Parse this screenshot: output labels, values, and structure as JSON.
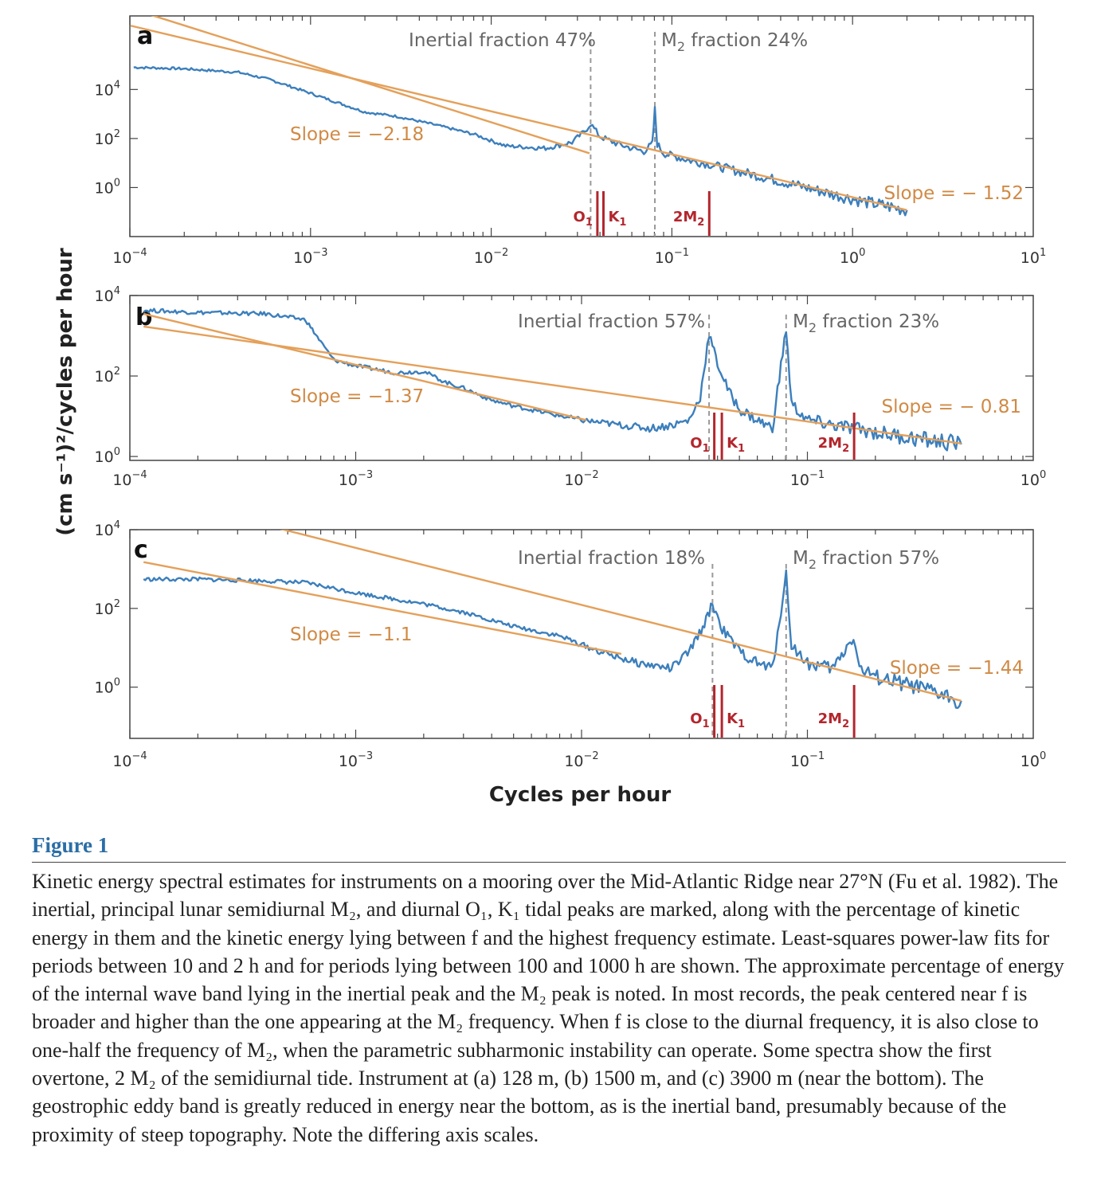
{
  "figure": {
    "xlabel": "Cycles per hour",
    "ylabel": "(cm s⁻¹)²/cycles per hour"
  },
  "colors": {
    "spectrum": "#3c7fbc",
    "fit": "#e4a05a",
    "tide": "#b3262d",
    "dashed": "#999999",
    "title": "#2b6ea6"
  },
  "chart_data": [
    {
      "type": "line",
      "panel": "a",
      "x_scale": "log",
      "y_scale": "log",
      "xlim": [
        0.0001,
        10
      ],
      "ylim": [
        0.01,
        10000000
      ],
      "x_ticks": [
        {
          "base": "10",
          "exp": "−4",
          "v": 0.0001
        },
        {
          "base": "10",
          "exp": "−3",
          "v": 0.001
        },
        {
          "base": "10",
          "exp": "−2",
          "v": 0.01
        },
        {
          "base": "10",
          "exp": "−1",
          "v": 0.1
        },
        {
          "base": "10",
          "exp": "0",
          "v": 1
        },
        {
          "base": "10",
          "exp": "1",
          "v": 10
        }
      ],
      "y_ticks": [
        {
          "base": "10",
          "exp": "0",
          "v": 1
        },
        {
          "base": "10",
          "exp": "2",
          "v": 100
        },
        {
          "base": "10",
          "exp": "4",
          "v": 10000
        }
      ],
      "inertial_label": "Inertial fraction 47%",
      "m2_label_pre": "M",
      "m2_label_sub": "2",
      "m2_label_post": " fraction 24%",
      "inertial_freq": 0.0355,
      "m2_freq": 0.0805,
      "low_fit": {
        "label": "Slope = −2.18",
        "from": [
          0.000101,
          20000000
        ],
        "to": [
          0.035,
          25
        ]
      },
      "high_fit": {
        "label": "Slope = − 1.52",
        "from": [
          0.000101,
          4000000
        ],
        "to": [
          2.0,
          0.12
        ]
      },
      "tides": {
        "O1": 0.0387,
        "K1": 0.0418,
        "2M2": 0.161
      },
      "series": [
        {
          "x": [
            0.000105,
            0.0002,
            0.0004,
            0.0006,
            0.001,
            0.0015,
            0.002,
            0.003,
            0.005,
            0.008,
            0.012,
            0.02,
            0.028,
            0.033,
            0.0355,
            0.04,
            0.05,
            0.06,
            0.07,
            0.078,
            0.0805,
            0.083,
            0.09,
            0.1,
            0.13,
            0.16,
            0.2,
            0.3,
            0.5,
            0.8,
            1.2,
            2.0
          ],
          "y": [
            80000,
            70000,
            50000,
            25000,
            7000,
            2500,
            1200,
            800,
            350,
            150,
            50,
            40,
            70,
            200,
            400,
            120,
            60,
            40,
            30,
            60,
            1500,
            60,
            25,
            20,
            12,
            9,
            6,
            3,
            1.2,
            0.5,
            0.25,
            0.12
          ]
        }
      ]
    },
    {
      "type": "line",
      "panel": "b",
      "x_scale": "log",
      "y_scale": "log",
      "xlim": [
        0.0001,
        1
      ],
      "ylim": [
        0.8,
        10000
      ],
      "x_ticks": [
        {
          "base": "10",
          "exp": "−4",
          "v": 0.0001
        },
        {
          "base": "10",
          "exp": "−3",
          "v": 0.001
        },
        {
          "base": "10",
          "exp": "−2",
          "v": 0.01
        },
        {
          "base": "10",
          "exp": "−1",
          "v": 0.1
        },
        {
          "base": "10",
          "exp": "0",
          "v": 1
        }
      ],
      "y_ticks": [
        {
          "base": "10",
          "exp": "0",
          "v": 1
        },
        {
          "base": "10",
          "exp": "2",
          "v": 100
        },
        {
          "base": "10",
          "exp": "4",
          "v": 10000
        }
      ],
      "inertial_label": "Inertial fraction 57%",
      "m2_label_pre": "M",
      "m2_label_sub": "2",
      "m2_label_post": " fraction 23%",
      "inertial_freq": 0.0367,
      "m2_freq": 0.0805,
      "low_fit": {
        "label": "Slope = −1.37",
        "from": [
          0.000115,
          3500
        ],
        "to": [
          0.0105,
          8
        ]
      },
      "high_fit": {
        "label": "Slope = − 0.81",
        "from": [
          0.000115,
          1700
        ],
        "to": [
          0.48,
          2.1
        ]
      },
      "tides": {
        "O1": 0.0387,
        "K1": 0.0418,
        "2M2": 0.161
      },
      "series": [
        {
          "x": [
            0.000115,
            0.0002,
            0.0004,
            0.0006,
            0.0007,
            0.0008,
            0.001,
            0.0015,
            0.002,
            0.0025,
            0.003,
            0.004,
            0.005,
            0.007,
            0.01,
            0.015,
            0.02,
            0.025,
            0.03,
            0.0335,
            0.0367,
            0.04,
            0.045,
            0.05,
            0.06,
            0.07,
            0.0805,
            0.085,
            0.1,
            0.13,
            0.16,
            0.2,
            0.3,
            0.48
          ],
          "y": [
            4300,
            3800,
            3500,
            2500,
            700,
            250,
            180,
            120,
            130,
            70,
            50,
            25,
            18,
            12,
            8,
            6,
            5,
            6,
            8,
            30,
            1100,
            200,
            40,
            15,
            8,
            5,
            1500,
            20,
            8,
            6,
            5,
            4,
            2.8,
            2.0
          ]
        }
      ]
    },
    {
      "type": "line",
      "panel": "c",
      "x_scale": "log",
      "y_scale": "log",
      "xlim": [
        0.0001,
        1
      ],
      "ylim": [
        0.05,
        10000
      ],
      "x_ticks": [
        {
          "base": "10",
          "exp": "−4",
          "v": 0.0001
        },
        {
          "base": "10",
          "exp": "−3",
          "v": 0.001
        },
        {
          "base": "10",
          "exp": "−2",
          "v": 0.01
        },
        {
          "base": "10",
          "exp": "−1",
          "v": 0.1
        },
        {
          "base": "10",
          "exp": "0",
          "v": 1
        }
      ],
      "y_ticks": [
        {
          "base": "10",
          "exp": "0",
          "v": 1
        },
        {
          "base": "10",
          "exp": "2",
          "v": 100
        },
        {
          "base": "10",
          "exp": "4",
          "v": 10000
        }
      ],
      "inertial_label": "Inertial fraction 18%",
      "m2_label_pre": "M",
      "m2_label_sub": "2",
      "m2_label_post": " fraction 57%",
      "inertial_freq": 0.038,
      "m2_freq": 0.0805,
      "low_fit": {
        "label": "Slope = −1.1",
        "from": [
          0.000115,
          1500
        ],
        "to": [
          0.015,
          7
        ]
      },
      "high_fit": {
        "label": "Slope = −1.44",
        "from": [
          0.00045,
          11000
        ],
        "to": [
          0.48,
          0.45
        ]
      },
      "tides": {
        "O1": 0.0387,
        "K1": 0.0418,
        "2M2": 0.161
      },
      "series": [
        {
          "x": [
            0.000115,
            0.0002,
            0.0004,
            0.0006,
            0.001,
            0.0015,
            0.002,
            0.003,
            0.005,
            0.008,
            0.012,
            0.018,
            0.025,
            0.03,
            0.035,
            0.038,
            0.042,
            0.05,
            0.06,
            0.07,
            0.0805,
            0.085,
            0.1,
            0.13,
            0.16,
            0.17,
            0.2,
            0.3,
            0.48
          ],
          "y": [
            550,
            550,
            500,
            450,
            250,
            170,
            130,
            80,
            35,
            20,
            8,
            4,
            3,
            8,
            40,
            130,
            30,
            8,
            4,
            3,
            700,
            12,
            4,
            3,
            20,
            3,
            1.8,
            1.0,
            0.45
          ]
        }
      ]
    }
  ],
  "caption": {
    "title": "Figure 1",
    "text": "Kinetic energy spectral estimates for instruments on a mooring over the Mid-Atlantic Ridge near 27°N (Fu et al. 1982). The inertial, principal lunar semidiurnal M₂, and diurnal O₁, K₁ tidal peaks are marked, along with the percentage of kinetic energy in them and the kinetic energy lying between f and the highest frequency estimate. Least-squares power-law fits for periods between 10 and 2 h and for periods lying between 100 and 1000 h are shown. The approximate percentage of energy of the internal wave band lying in the inertial peak and the M₂ peak is noted. In most records, the peak centered near f is broader and higher than the one appearing at the M₂ frequency. When f is close to the diurnal frequency, it is also close to one-half the frequency of M₂, when the parametric subharmonic instability can operate. Some spectra show the first overtone, 2 M₂ of the semidiurnal tide. Instrument at (a) 128 m, (b) 1500 m, and (c) 3900 m (near the bottom). The geostrophic eddy band is greatly reduced in energy near the bottom, as is the inertial band, presumably because of the proximity of steep topography. Note the differing axis scales."
  }
}
